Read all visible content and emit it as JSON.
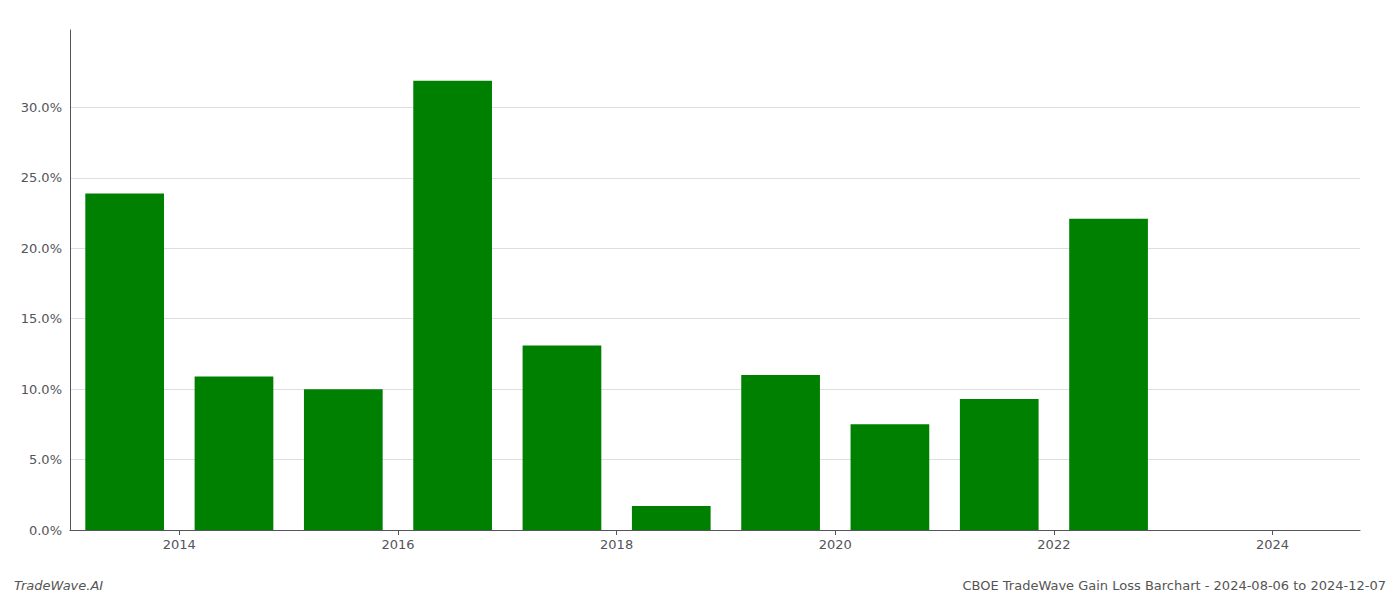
{
  "chart_data": {
    "type": "bar",
    "x": [
      2013.5,
      2014.5,
      2015.5,
      2016.5,
      2017.5,
      2018.5,
      2019.5,
      2020.5,
      2021.5,
      2022.5
    ],
    "values": [
      0.239,
      0.109,
      0.1,
      0.319,
      0.131,
      0.017,
      0.11,
      0.075,
      0.093,
      0.221
    ],
    "color": "#008000",
    "xlim": [
      2013.0,
      2024.8
    ],
    "xticks": [
      2014,
      2016,
      2018,
      2020,
      2022,
      2024
    ],
    "ylim": [
      0,
      0.355
    ],
    "yticks": [
      {
        "value": 0.0,
        "label": "0.0%"
      },
      {
        "value": 0.05,
        "label": "5.0%"
      },
      {
        "value": 0.1,
        "label": "10.0%"
      },
      {
        "value": 0.15,
        "label": "15.0%"
      },
      {
        "value": 0.2,
        "label": "20.0%"
      },
      {
        "value": 0.25,
        "label": "25.0%"
      },
      {
        "value": 0.3,
        "label": "30.0%"
      }
    ],
    "grid": true,
    "annotations": [
      "TradeWave.AI",
      "CBOE TradeWave Gain Loss Barchart - 2024-08-06 to 2024-12-07"
    ]
  }
}
